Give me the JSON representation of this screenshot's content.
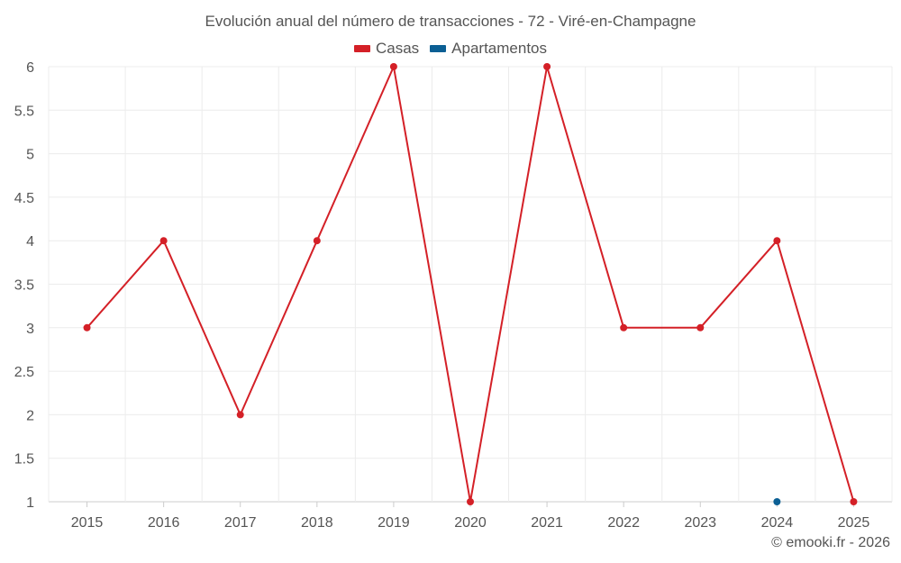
{
  "chart_data": {
    "type": "line",
    "title": "Evolución anual del número de transacciones - 72 - Viré-en-Champagne",
    "xlabel": "",
    "ylabel": "",
    "categories": [
      "2015",
      "2016",
      "2017",
      "2018",
      "2019",
      "2020",
      "2021",
      "2022",
      "2023",
      "2024",
      "2025"
    ],
    "ylim": [
      1,
      6
    ],
    "yticks": [
      1,
      1.5,
      2,
      2.5,
      3,
      3.5,
      4,
      4.5,
      5,
      5.5,
      6
    ],
    "ytick_labels": [
      "1",
      "1.5",
      "2",
      "2.5",
      "3",
      "3.5",
      "4",
      "4.5",
      "5",
      "5.5",
      "6"
    ],
    "grid": true,
    "legend_position": "top-center",
    "series": [
      {
        "name": "Casas",
        "color": "#d42027",
        "values": [
          3,
          4,
          2,
          4,
          6,
          1,
          6,
          3,
          3,
          4,
          1
        ]
      },
      {
        "name": "Apartamentos",
        "color": "#0b5f94",
        "values": [
          null,
          null,
          null,
          null,
          null,
          null,
          null,
          null,
          null,
          1,
          null
        ]
      }
    ]
  },
  "credit": "© emooki.fr - 2026"
}
